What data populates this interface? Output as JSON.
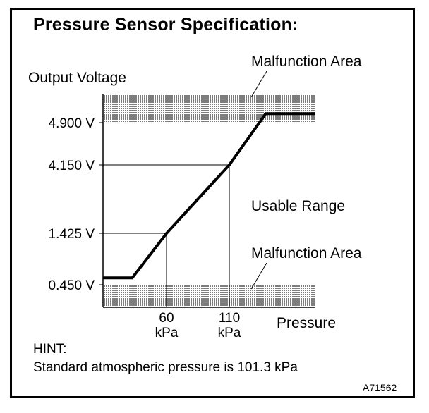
{
  "title": "Pressure Sensor Specification:",
  "hint": {
    "label": "HINT:",
    "text": "Standard atmospheric pressure is 101.3 kPa"
  },
  "figure_code": "A71562",
  "colors": {
    "line": "#000000",
    "hatch": "#8a8a8a",
    "background": "#ffffff"
  },
  "chart_data": {
    "type": "line",
    "title": "Pressure Sensor Specification:",
    "xlabel": "Pressure",
    "ylabel": "Output Voltage",
    "grid": false,
    "x_ticks": [
      {
        "value": 60,
        "label": "60",
        "unit": "kPa"
      },
      {
        "value": 110,
        "label": "110",
        "unit": "kPa"
      }
    ],
    "y_ticks": [
      {
        "value": 0.45,
        "label": "0.450 V"
      },
      {
        "value": 1.425,
        "label": "1.425 V"
      },
      {
        "value": 4.15,
        "label": "4.150 V"
      },
      {
        "value": 4.9,
        "label": "4.900 V"
      }
    ],
    "series": [
      {
        "points": [
          {
            "x": 10,
            "y": 0.58
          },
          {
            "x": 33,
            "y": 0.58
          },
          {
            "x": 60,
            "y": 1.425
          },
          {
            "x": 110,
            "y": 4.15
          },
          {
            "x": 139,
            "y": 5.05
          },
          {
            "x": 178,
            "y": 5.05
          }
        ]
      }
    ],
    "regions": [
      {
        "label": "Malfunction Area",
        "y_from": 4.9,
        "y_to": 5.38
      },
      {
        "label": "Malfunction Area",
        "y_from": -0.05,
        "y_to": 0.45
      }
    ],
    "annotations": [
      {
        "text": "Usable Range"
      }
    ]
  }
}
